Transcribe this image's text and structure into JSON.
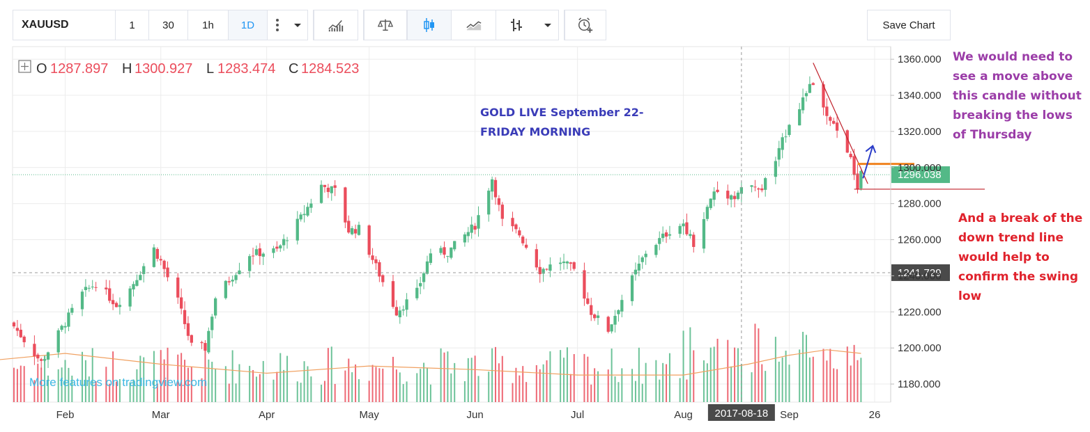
{
  "toolbar": {
    "symbol": "XAUUSD",
    "intervals": [
      "1",
      "30",
      "1h",
      "1D"
    ],
    "active_interval": "1D",
    "save_label": "Save Chart",
    "icons": [
      "more-vert-icon",
      "chevron-down-icon",
      "indicators-icon",
      "compare-icon",
      "candles-icon",
      "line-chart-icon",
      "bars-icon",
      "chevron-down-icon",
      "alert-add-icon"
    ]
  },
  "ohlc": {
    "o_label": "O",
    "o": "1287.897",
    "h_label": "H",
    "h": "1300.927",
    "l_label": "L",
    "l": "1283.474",
    "c_label": "C",
    "c": "1284.523"
  },
  "annotations": {
    "title_line1": "GOLD LIVE September 22-",
    "title_line2": "FRIDAY MORNING",
    "note_top": [
      "We would need to",
      "see a move above",
      "this candle without",
      "breaking the lows",
      "of Thursday"
    ],
    "note_bottom": [
      "And a break of the",
      "down trend line",
      "would help to",
      "confirm the swing",
      "low"
    ]
  },
  "watermark": "More features on tradingview.com",
  "colors": {
    "up": "#53b987",
    "down": "#eb4d5c",
    "ma": "#f0a060",
    "title_blue": "#3a3cb8",
    "note_purple": "#9b3da8",
    "note_red": "#e0222c",
    "trend_red": "#c0202a",
    "resistance_orange": "#f0821e",
    "arrow_blue": "#2a3cc8",
    "last_price_bg": "#53b987",
    "crosshair_bg": "#4a4a4a"
  },
  "chart_data": {
    "type": "candlestick",
    "symbol": "XAUUSD",
    "timeframe": "1D",
    "x_ticks": [
      "Feb",
      "Mar",
      "Apr",
      "May",
      "Jun",
      "Jul",
      "Aug",
      "Sep",
      "26"
    ],
    "y_ticks": [
      "1180.000",
      "1200.000",
      "1220.000",
      "1240.000",
      "1260.000",
      "1280.000",
      "1300.000",
      "1320.000",
      "1340.000",
      "1360.000"
    ],
    "ylim": [
      1170,
      1367
    ],
    "last_price": "1296.038",
    "crosshair_price": "1241.729",
    "crosshair_date": "2017-08-18",
    "anchors": [
      [
        "2017-01-17",
        1212
      ],
      [
        "2017-01-25",
        1192
      ],
      [
        "2017-02-06",
        1230
      ],
      [
        "2017-02-10",
        1236
      ],
      [
        "2017-02-16",
        1224
      ],
      [
        "2017-02-20",
        1233
      ],
      [
        "2017-02-27",
        1255
      ],
      [
        "2017-03-01",
        1248
      ],
      [
        "2017-03-06",
        1226
      ],
      [
        "2017-03-10",
        1201
      ],
      [
        "2017-03-14",
        1200
      ],
      [
        "2017-03-17",
        1228
      ],
      [
        "2017-03-27",
        1252
      ],
      [
        "2017-04-04",
        1254
      ],
      [
        "2017-04-11",
        1272
      ],
      [
        "2017-04-17",
        1290
      ],
      [
        "2017-04-21",
        1287
      ],
      [
        "2017-04-25",
        1265
      ],
      [
        "2017-04-28",
        1266
      ],
      [
        "2017-05-03",
        1245
      ],
      [
        "2017-05-09",
        1220
      ],
      [
        "2017-05-15",
        1231
      ],
      [
        "2017-05-19",
        1253
      ],
      [
        "2017-05-24",
        1253
      ],
      [
        "2017-06-01",
        1268
      ],
      [
        "2017-06-06",
        1294
      ],
      [
        "2017-06-09",
        1270
      ],
      [
        "2017-06-14",
        1263
      ],
      [
        "2017-06-20",
        1243
      ],
      [
        "2017-06-26",
        1248
      ],
      [
        "2017-06-30",
        1243
      ],
      [
        "2017-07-05",
        1220
      ],
      [
        "2017-07-10",
        1210
      ],
      [
        "2017-07-14",
        1227
      ],
      [
        "2017-07-21",
        1253
      ],
      [
        "2017-07-28",
        1265
      ],
      [
        "2017-08-01",
        1269
      ],
      [
        "2017-08-04",
        1258
      ],
      [
        "2017-08-10",
        1287
      ],
      [
        "2017-08-16",
        1284
      ],
      [
        "2017-08-18",
        1289
      ],
      [
        "2017-08-24",
        1288
      ],
      [
        "2017-08-29",
        1309
      ],
      [
        "2017-09-01",
        1325
      ],
      [
        "2017-09-05",
        1338
      ],
      [
        "2017-09-08",
        1347
      ],
      [
        "2017-09-12",
        1327
      ],
      [
        "2017-09-15",
        1320
      ],
      [
        "2017-09-18",
        1310
      ],
      [
        "2017-09-20",
        1297
      ],
      [
        "2017-09-21",
        1288
      ],
      [
        "2017-09-22",
        1296
      ]
    ],
    "moving_average": [
      [
        "2017-01-10",
        1193
      ],
      [
        "2017-02-01",
        1197
      ],
      [
        "2017-03-01",
        1191
      ],
      [
        "2017-04-01",
        1186
      ],
      [
        "2017-05-01",
        1190
      ],
      [
        "2017-06-01",
        1188
      ],
      [
        "2017-07-01",
        1185
      ],
      [
        "2017-08-01",
        1185
      ],
      [
        "2017-08-20",
        1191
      ],
      [
        "2017-09-01",
        1196
      ],
      [
        "2017-09-12",
        1199
      ],
      [
        "2017-09-22",
        1197
      ]
    ]
  }
}
